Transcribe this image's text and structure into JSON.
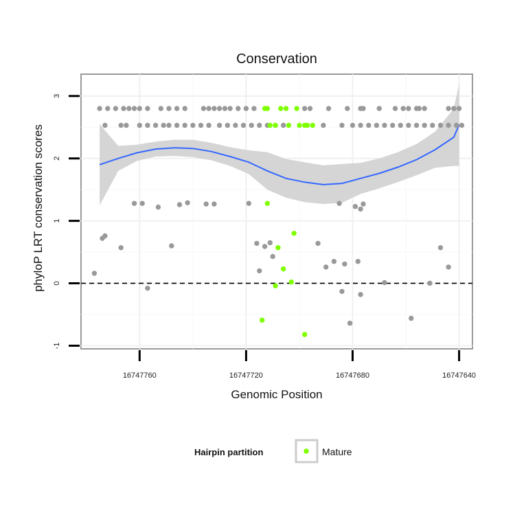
{
  "chart_data": {
    "type": "scatter",
    "title": "Conservation",
    "xlabel": "Genomic Position",
    "ylabel": "phyloP LRT conservation scores",
    "x_reversed": true,
    "xlim": [
      16747782,
      16747635
    ],
    "ylim": [
      -1.05,
      3.35
    ],
    "x_ticks": [
      16747760,
      16747720,
      16747680,
      16747640
    ],
    "x_tick_labels": [
      "16747760",
      "16747720",
      "16747680",
      "16747640"
    ],
    "y_ticks": [
      -1,
      0,
      1,
      2,
      3
    ],
    "y_tick_labels": [
      "-1",
      "0",
      "1",
      "2",
      "3"
    ],
    "grid": true,
    "reference_line": {
      "y": 0,
      "style": "dashed",
      "color": "#000000"
    },
    "colors": {
      "other": "#999999",
      "mature": "#7FFF00",
      "smooth": "#3366FF",
      "band": "#D3D3D3"
    },
    "legend": {
      "title": "Hairpin partition",
      "entries": [
        {
          "label": "Mature",
          "color": "#7FFF00"
        }
      ],
      "placement": "bottom"
    },
    "series": [
      {
        "points": [
          [
            16747775,
            2.8
          ],
          [
            16747772,
            2.8
          ],
          [
            16747769,
            2.8
          ],
          [
            16747766,
            2.8
          ],
          [
            16747764,
            2.8
          ],
          [
            16747762,
            2.8
          ],
          [
            16747760,
            2.8
          ],
          [
            16747757,
            2.8
          ],
          [
            16747752,
            2.8
          ],
          [
            16747749,
            2.8
          ],
          [
            16747746,
            2.8
          ],
          [
            16747743,
            2.8
          ],
          [
            16747736,
            2.8
          ],
          [
            16747734,
            2.8
          ],
          [
            16747732,
            2.8
          ],
          [
            16747730,
            2.8
          ],
          [
            16747728,
            2.8
          ],
          [
            16747726,
            2.8
          ],
          [
            16747723,
            2.8
          ],
          [
            16747720,
            2.8
          ],
          [
            16747717,
            2.8
          ],
          [
            16747698,
            2.8
          ],
          [
            16747696,
            2.8
          ],
          [
            16747689,
            2.8
          ],
          [
            16747682,
            2.8
          ],
          [
            16747677,
            2.8
          ],
          [
            16747676,
            2.8
          ],
          [
            16747670,
            2.8
          ],
          [
            16747664,
            2.8
          ],
          [
            16747661,
            2.8
          ],
          [
            16747659,
            2.8
          ],
          [
            16747656,
            2.8
          ],
          [
            16747655,
            2.8
          ],
          [
            16747653,
            2.8
          ],
          [
            16747644,
            2.8
          ],
          [
            16747642,
            2.8
          ],
          [
            16747640,
            2.8
          ],
          [
            16747773,
            2.53
          ],
          [
            16747767,
            2.53
          ],
          [
            16747765,
            2.53
          ],
          [
            16747760,
            2.53
          ],
          [
            16747757,
            2.53
          ],
          [
            16747754,
            2.53
          ],
          [
            16747751,
            2.53
          ],
          [
            16747749,
            2.53
          ],
          [
            16747746,
            2.53
          ],
          [
            16747743,
            2.53
          ],
          [
            16747740,
            2.53
          ],
          [
            16747737,
            2.53
          ],
          [
            16747734,
            2.53
          ],
          [
            16747730,
            2.53
          ],
          [
            16747727,
            2.53
          ],
          [
            16747724,
            2.53
          ],
          [
            16747721,
            2.53
          ],
          [
            16747718,
            2.53
          ],
          [
            16747715,
            2.53
          ],
          [
            16747712,
            2.53
          ],
          [
            16747709,
            2.53
          ],
          [
            16747706,
            2.53
          ],
          [
            16747691,
            2.53
          ],
          [
            16747684,
            2.53
          ],
          [
            16747680,
            2.53
          ],
          [
            16747677,
            2.53
          ],
          [
            16747674,
            2.53
          ],
          [
            16747671,
            2.53
          ],
          [
            16747668,
            2.53
          ],
          [
            16747665,
            2.53
          ],
          [
            16747662,
            2.53
          ],
          [
            16747659,
            2.53
          ],
          [
            16747656,
            2.53
          ],
          [
            16747653,
            2.53
          ],
          [
            16747650,
            2.53
          ],
          [
            16747647,
            2.53
          ],
          [
            16747644,
            2.53
          ],
          [
            16747641,
            2.53
          ],
          [
            16747639,
            2.53
          ],
          [
            16747762,
            1.28
          ],
          [
            16747759,
            1.28
          ],
          [
            16747753,
            1.22
          ],
          [
            16747745,
            1.26
          ],
          [
            16747742,
            1.29
          ],
          [
            16747735,
            1.27
          ],
          [
            16747732,
            1.27
          ],
          [
            16747719,
            1.28
          ],
          [
            16747685,
            1.28
          ],
          [
            16747679,
            1.23
          ],
          [
            16747677,
            1.19
          ],
          [
            16747676,
            1.27
          ],
          [
            16747777,
            0.16
          ],
          [
            16747774,
            0.72
          ],
          [
            16747773,
            0.76
          ],
          [
            16747767,
            0.57
          ],
          [
            16747757,
            -0.08
          ],
          [
            16747748,
            0.6
          ],
          [
            16747716,
            0.64
          ],
          [
            16747715,
            0.2
          ],
          [
            16747713,
            0.59
          ],
          [
            16747711,
            0.65
          ],
          [
            16747710,
            0.43
          ],
          [
            16747693,
            0.64
          ],
          [
            16747690,
            0.26
          ],
          [
            16747687,
            0.35
          ],
          [
            16747684,
            -0.13
          ],
          [
            16747683,
            0.31
          ],
          [
            16747681,
            -0.64
          ],
          [
            16747678,
            0.35
          ],
          [
            16747677,
            -0.18
          ],
          [
            16747668,
            0.01
          ],
          [
            16747658,
            -0.56
          ],
          [
            16747651,
            0.0
          ],
          [
            16747647,
            0.57
          ],
          [
            16747644,
            0.26
          ]
        ]
      },
      {
        "name": "Mature",
        "points": [
          [
            16747713,
            2.8
          ],
          [
            16747712,
            2.8
          ],
          [
            16747707,
            2.8
          ],
          [
            16747705,
            2.8
          ],
          [
            16747701,
            2.8
          ],
          [
            16747711,
            2.53
          ],
          [
            16747709,
            2.53
          ],
          [
            16747704,
            2.53
          ],
          [
            16747700,
            2.53
          ],
          [
            16747698,
            2.53
          ],
          [
            16747697,
            2.53
          ],
          [
            16747695,
            2.53
          ],
          [
            16747712,
            1.28
          ],
          [
            16747708,
            0.57
          ],
          [
            16747706,
            0.23
          ],
          [
            16747703,
            0.02
          ],
          [
            16747702,
            0.8
          ],
          [
            16747709,
            -0.04
          ],
          [
            16747714,
            -0.59
          ],
          [
            16747698,
            -0.82
          ]
        ]
      }
    ],
    "smooth": {
      "x": [
        16747775,
        16747768,
        16747761,
        16747754,
        16747747,
        16747740,
        16747733,
        16747726,
        16747719,
        16747712,
        16747705,
        16747698,
        16747691,
        16747684,
        16747677,
        16747670,
        16747663,
        16747656,
        16747649,
        16747642,
        16747640
      ],
      "y": [
        1.9,
        2.0,
        2.09,
        2.15,
        2.17,
        2.16,
        2.11,
        2.03,
        1.94,
        1.8,
        1.68,
        1.62,
        1.58,
        1.6,
        1.68,
        1.76,
        1.86,
        1.98,
        2.14,
        2.34,
        2.54
      ],
      "lo": [
        1.25,
        1.8,
        1.96,
        2.03,
        2.04,
        2.02,
        1.97,
        1.88,
        1.75,
        1.5,
        1.37,
        1.3,
        1.27,
        1.29,
        1.43,
        1.52,
        1.62,
        1.73,
        1.85,
        1.88,
        1.88
      ],
      "hi": [
        2.55,
        2.2,
        2.22,
        2.27,
        2.3,
        2.3,
        2.25,
        2.18,
        2.13,
        2.1,
        1.99,
        1.94,
        1.89,
        1.91,
        1.93,
        2.0,
        2.1,
        2.23,
        2.43,
        2.8,
        3.2
      ]
    }
  }
}
